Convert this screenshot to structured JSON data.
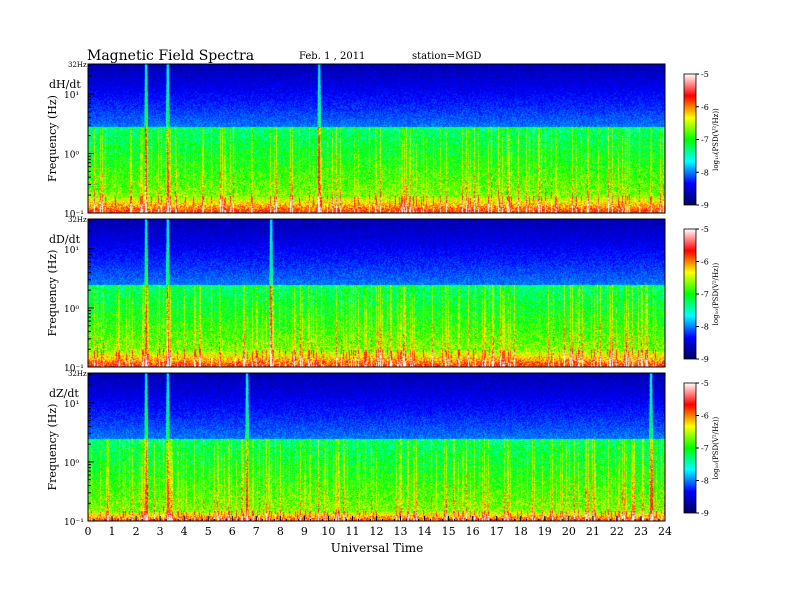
{
  "header": {
    "title": "Magnetic  Field  Spectra",
    "date": "Feb. 1  , 2011",
    "station": "station=MGD"
  },
  "chart_data": {
    "type": "heatmap",
    "xlabel": "Universal Time",
    "x_ticks": [
      "0",
      "1",
      "2",
      "3",
      "4",
      "5",
      "6",
      "7",
      "8",
      "9",
      "10",
      "11",
      "12",
      "13",
      "14",
      "15",
      "16",
      "17",
      "18",
      "19",
      "20",
      "21",
      "22",
      "23",
      "24"
    ],
    "xlim": [
      0,
      24
    ],
    "ylabel": "Frequency  (Hz)",
    "y_scale": "log",
    "ylim": [
      0.1,
      32
    ],
    "colorbar": {
      "label": "log₁₀(PSD(V²/Hz))",
      "range": [
        -9,
        -5
      ],
      "ticks": [
        "-5",
        "-6",
        "-7",
        "-8",
        "-9"
      ],
      "colors": [
        "#000060",
        "#0000ff",
        "#00ffff",
        "#00ff00",
        "#ffff00",
        "#ff0000",
        "#ffffff"
      ]
    },
    "panels": [
      {
        "name": "dH/dt",
        "top_label": "32Hz",
        "y_tick_labels": [
          "10¹",
          "10⁰",
          "10⁻¹"
        ],
        "band_low_hz": 0.2,
        "band_high_hz": 2.8,
        "spikes_ut": [
          2.4,
          3.3,
          9.6
        ]
      },
      {
        "name": "dD/dt",
        "top_label": "32Hz",
        "y_tick_labels": [
          "10¹",
          "10⁰",
          "10⁻¹"
        ],
        "band_low_hz": 0.2,
        "band_high_hz": 2.5,
        "spikes_ut": [
          2.4,
          3.3,
          7.6
        ]
      },
      {
        "name": "dZ/dt",
        "top_label": "32Hz",
        "y_tick_labels": [
          "10¹",
          "10⁰",
          "10⁻¹"
        ],
        "band_low_hz": 0.15,
        "band_high_hz": 2.5,
        "spikes_ut": [
          2.4,
          3.3,
          6.6,
          23.4
        ]
      }
    ]
  }
}
